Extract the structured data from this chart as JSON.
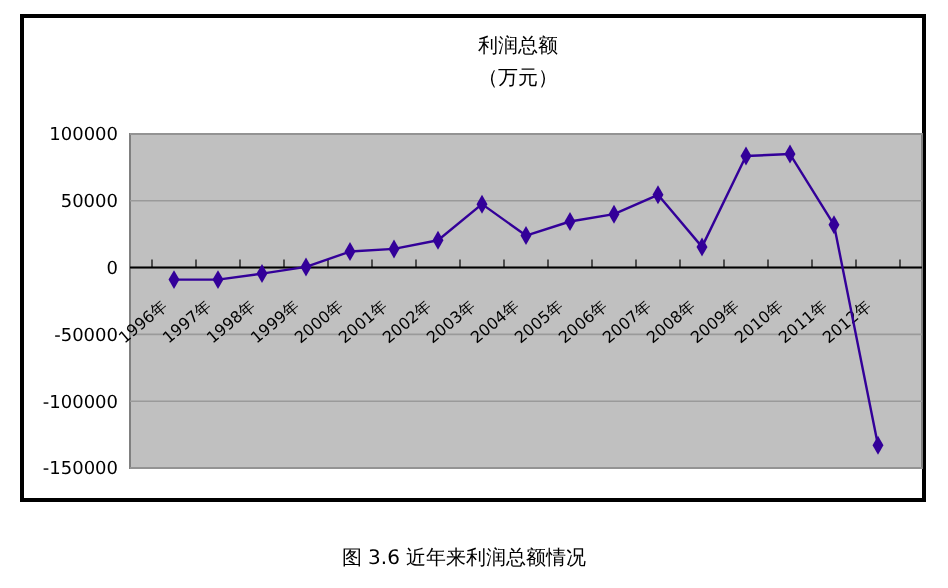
{
  "chart_data": {
    "type": "line",
    "title": "利润总额",
    "subtitle": "（万元）",
    "annotations": [
      "图 3.6  近年来利润总额情况"
    ],
    "categories": [
      "1996年",
      "1997年",
      "1998年",
      "1999年",
      "2000年",
      "2001年",
      "2002年",
      "2003年",
      "2004年",
      "2005年",
      "2006年",
      "2007年",
      "2008年",
      "2009年",
      "2010年",
      "2011年",
      "2012年"
    ],
    "series": [
      {
        "color": "#330099",
        "values": [
          -9000,
          -9000,
          -4500,
          500,
          12000,
          14000,
          20500,
          47500,
          24000,
          34500,
          40000,
          54500,
          15500,
          83500,
          85000,
          32000,
          -133000
        ]
      }
    ],
    "ylim": [
      -150000,
      100000
    ],
    "yticks": [
      -150000,
      -100000,
      -50000,
      0,
      50000,
      100000
    ],
    "grid": "y",
    "marker": "diamond",
    "line_style": "solid"
  }
}
